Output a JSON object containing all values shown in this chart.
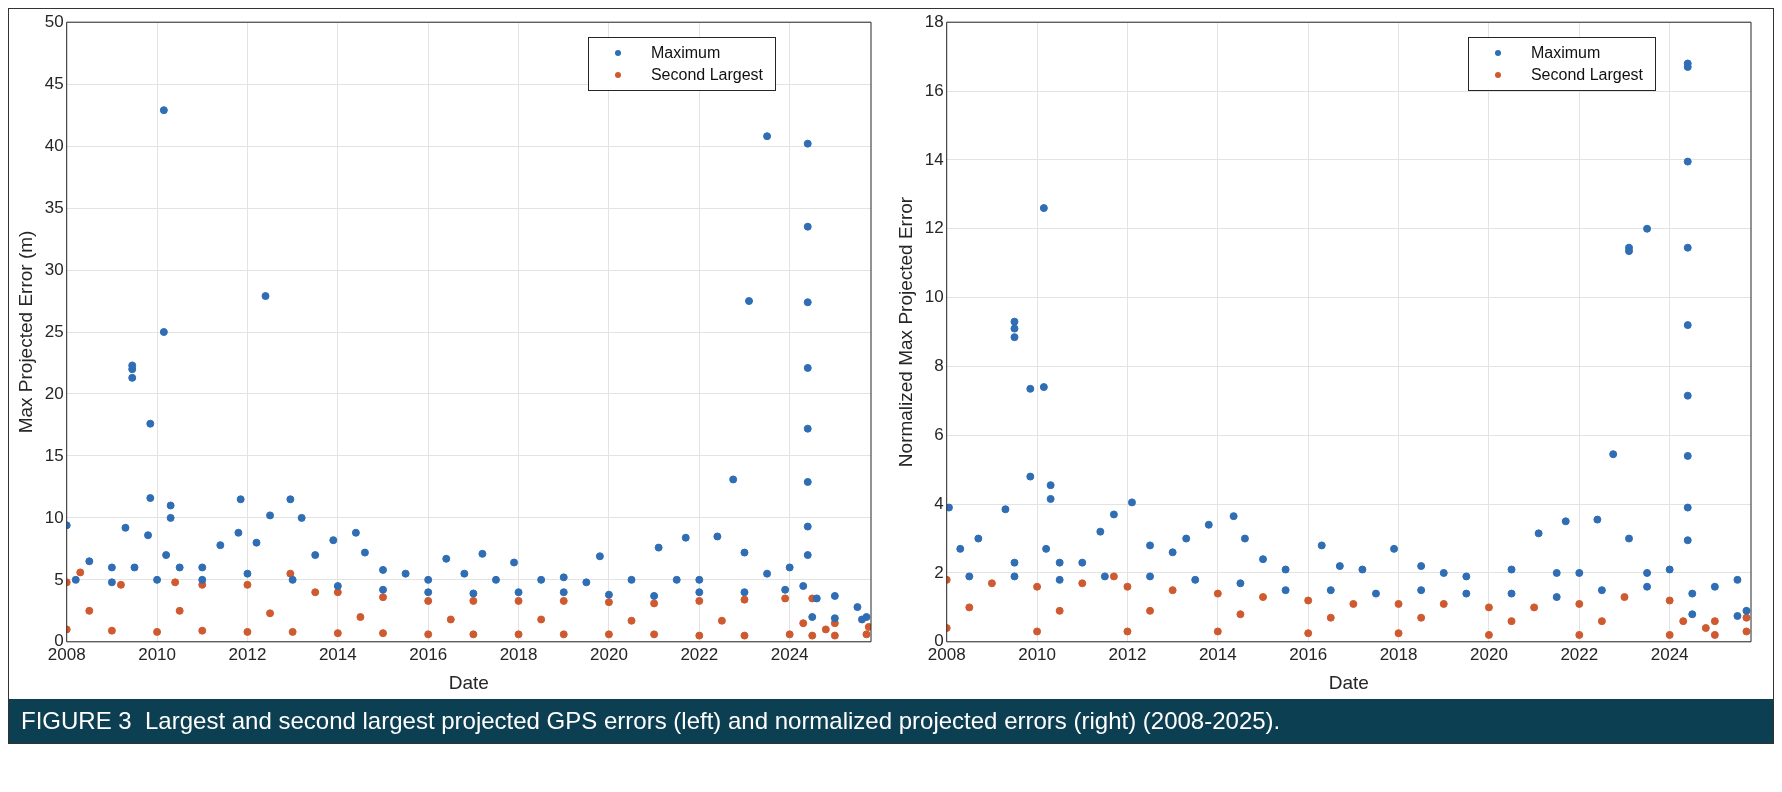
{
  "chart_data": [
    {
      "type": "scatter",
      "xlabel": "Date",
      "ylabel": "Max Projected Error (m)",
      "annotations": [
        "FIGURE 3  Largest and second largest projected GPS errors (left) and normalized projected errors (right) (2008-2025)."
      ],
      "xlim": [
        2008,
        2025.8
      ],
      "xticks": [
        2008,
        2010,
        2012,
        2014,
        2016,
        2018,
        2020,
        2022,
        2024
      ],
      "ylim": [
        0,
        50
      ],
      "yticks": [
        0,
        5,
        10,
        15,
        20,
        25,
        30,
        35,
        40,
        45,
        50
      ],
      "grid": true,
      "legend": "top right",
      "marker": "circle",
      "series": [
        {
          "name": "Maximum",
          "color": "#2f6db5",
          "x": [
            2008.0,
            2008.5,
            2009.0,
            2009.3,
            2009.5,
            2009.8,
            2010.2,
            2010.5,
            2011.0,
            2011.4,
            2011.8,
            2012.2,
            2012.5,
            2012.95,
            2013.2,
            2013.5,
            2013.9,
            2014.4,
            2014.6,
            2015.0,
            2015.5,
            2016.0,
            2016.4,
            2016.8,
            2017.2,
            2017.5,
            2017.9,
            2018.5,
            2019.0,
            2019.5,
            2019.8,
            2020.5,
            2021.1,
            2021.5,
            2021.7,
            2022.0,
            2022.4,
            2022.75,
            2023.0,
            2023.5,
            2024.0,
            2024.3,
            2024.6,
            2025.0,
            2025.5,
            2025.7,
            2008.2,
            2009.0,
            2010.0,
            2011.0,
            2012.0,
            2013.0,
            2014.0,
            2015.0,
            2016.0,
            2017.0,
            2018.0,
            2019.0,
            2020.0,
            2021.0,
            2022.0,
            2023.0,
            2023.9,
            2024.5,
            2025.0,
            2025.6,
            2009.45,
            2009.45,
            2009.45,
            2009.85,
            2009.85,
            2010.15,
            2010.15,
            2010.3,
            2010.3,
            2011.85,
            2012.4,
            2023.1,
            2023.5,
            2024.4,
            2024.4,
            2024.4,
            2024.4,
            2024.4,
            2024.4,
            2024.4,
            2024.4
          ],
          "values": [
            9.4,
            6.5,
            6.0,
            9.2,
            6.0,
            8.6,
            7.0,
            6.0,
            6.0,
            7.8,
            8.8,
            8.0,
            10.2,
            11.5,
            10.0,
            7.0,
            8.2,
            8.8,
            7.2,
            5.8,
            5.5,
            5.0,
            6.7,
            5.5,
            7.1,
            5.0,
            6.4,
            5.0,
            5.2,
            4.8,
            6.9,
            5.0,
            7.6,
            5.0,
            8.4,
            5.0,
            8.5,
            13.1,
            7.2,
            5.5,
            6.0,
            4.5,
            3.5,
            3.7,
            2.8,
            2.0,
            5.0,
            4.8,
            5.0,
            5.0,
            5.5,
            5.0,
            4.5,
            4.2,
            4.0,
            3.9,
            4.0,
            4.0,
            3.8,
            3.7,
            4.0,
            4.0,
            4.2,
            2.0,
            1.9,
            1.8,
            22.3,
            21.3,
            22.0,
            17.6,
            11.6,
            42.9,
            25.0,
            11.0,
            10.0,
            11.5,
            27.9,
            27.5,
            40.8,
            40.2,
            33.5,
            27.4,
            22.1,
            17.2,
            12.9,
            9.3,
            7.0
          ]
        },
        {
          "name": "Second Largest",
          "color": "#cf5a30",
          "x": [
            2008.0,
            2008.3,
            2009.2,
            2010.4,
            2011.0,
            2012.0,
            2012.95,
            2013.5,
            2014.0,
            2015.0,
            2016.0,
            2017.0,
            2018.0,
            2019.0,
            2020.0,
            2021.0,
            2022.0,
            2023.0,
            2023.9,
            2024.3,
            2024.5,
            2025.0,
            2025.75,
            2008.0,
            2009.0,
            2010.0,
            2011.0,
            2012.0,
            2013.0,
            2014.0,
            2015.0,
            2016.0,
            2017.0,
            2018.0,
            2019.0,
            2020.0,
            2021.0,
            2022.0,
            2023.0,
            2024.0,
            2024.5,
            2025.0,
            2025.7,
            2008.5,
            2010.5,
            2012.5,
            2014.5,
            2016.5,
            2018.5,
            2020.5,
            2022.5,
            2024.8
          ],
          "values": [
            4.8,
            5.6,
            4.6,
            4.8,
            4.6,
            4.6,
            5.5,
            4.0,
            4.0,
            3.6,
            3.3,
            3.3,
            3.3,
            3.3,
            3.2,
            3.1,
            3.3,
            3.4,
            3.5,
            1.5,
            3.5,
            1.5,
            1.2,
            1.0,
            0.9,
            0.8,
            0.9,
            0.8,
            0.8,
            0.7,
            0.7,
            0.6,
            0.6,
            0.6,
            0.6,
            0.6,
            0.6,
            0.5,
            0.5,
            0.6,
            0.5,
            0.5,
            0.6,
            2.5,
            2.5,
            2.3,
            2.0,
            1.8,
            1.8,
            1.7,
            1.7,
            1.0
          ]
        }
      ]
    },
    {
      "type": "scatter",
      "xlabel": "Date",
      "ylabel": "Normalized Max Projected Error",
      "xlim": [
        2008,
        2025.8
      ],
      "xticks": [
        2008,
        2010,
        2012,
        2014,
        2016,
        2018,
        2020,
        2022,
        2024
      ],
      "ylim": [
        0,
        18
      ],
      "yticks": [
        0,
        2,
        4,
        6,
        8,
        10,
        12,
        14,
        16,
        18
      ],
      "grid": true,
      "legend": "top right",
      "marker": "circle",
      "series": [
        {
          "name": "Maximum",
          "color": "#2f6db5",
          "x": [
            2008.05,
            2008.3,
            2008.7,
            2009.3,
            2009.5,
            2010.2,
            2010.5,
            2011.0,
            2011.4,
            2011.7,
            2012.1,
            2012.5,
            2013.0,
            2013.3,
            2013.8,
            2014.35,
            2014.6,
            2015.0,
            2015.5,
            2016.3,
            2016.7,
            2017.2,
            2017.9,
            2018.5,
            2019.0,
            2019.5,
            2020.5,
            2021.1,
            2021.5,
            2021.7,
            2022.0,
            2022.4,
            2022.75,
            2023.1,
            2023.5,
            2024.0,
            2024.5,
            2025.0,
            2025.5,
            2025.7,
            2008.5,
            2009.5,
            2010.5,
            2011.5,
            2012.5,
            2013.5,
            2014.5,
            2015.5,
            2016.5,
            2017.5,
            2018.5,
            2019.5,
            2020.5,
            2021.5,
            2022.5,
            2023.5,
            2024.5,
            2025.5,
            2009.5,
            2009.5,
            2009.5,
            2009.85,
            2009.85,
            2010.15,
            2010.15,
            2010.3,
            2010.3,
            2023.1,
            2023.1,
            2023.5,
            2024.4,
            2024.4,
            2024.4,
            2024.4,
            2024.4,
            2024.4,
            2024.4,
            2024.4,
            2024.4
          ],
          "values": [
            3.9,
            2.7,
            3.0,
            3.85,
            2.3,
            2.7,
            2.3,
            2.3,
            3.2,
            3.7,
            4.05,
            2.8,
            2.6,
            3.0,
            3.4,
            3.65,
            3.0,
            2.4,
            2.1,
            2.8,
            2.2,
            2.1,
            2.7,
            2.2,
            2.0,
            1.9,
            2.1,
            3.15,
            2.0,
            3.5,
            2.0,
            3.55,
            5.45,
            3.0,
            2.0,
            2.1,
            1.4,
            1.6,
            1.8,
            0.9,
            1.9,
            1.9,
            1.8,
            1.9,
            1.9,
            1.8,
            1.7,
            1.5,
            1.5,
            1.4,
            1.5,
            1.4,
            1.4,
            1.3,
            1.5,
            1.6,
            0.8,
            0.75,
            9.3,
            9.1,
            8.85,
            7.35,
            4.8,
            12.6,
            7.4,
            4.55,
            4.15,
            11.45,
            11.35,
            12.0,
            16.8,
            16.7,
            13.95,
            11.45,
            9.2,
            7.15,
            5.4,
            3.9,
            2.95
          ]
        },
        {
          "name": "Second Largest",
          "color": "#cf5a30",
          "x": [
            2008.0,
            2009.0,
            2010.0,
            2011.0,
            2011.7,
            2012.0,
            2013.0,
            2014.0,
            2015.0,
            2016.0,
            2017.0,
            2018.0,
            2019.0,
            2020.0,
            2021.0,
            2022.0,
            2023.0,
            2024.0,
            2024.3,
            2025.0,
            2025.7,
            2008.0,
            2010.0,
            2012.0,
            2014.0,
            2016.0,
            2018.0,
            2020.0,
            2022.0,
            2024.0,
            2025.0,
            2025.7,
            2008.5,
            2010.5,
            2012.5,
            2014.5,
            2016.5,
            2018.5,
            2020.5,
            2022.5,
            2024.8
          ],
          "values": [
            1.8,
            1.7,
            1.6,
            1.7,
            1.9,
            1.6,
            1.5,
            1.4,
            1.3,
            1.2,
            1.1,
            1.1,
            1.1,
            1.0,
            1.0,
            1.1,
            1.3,
            1.2,
            0.6,
            0.6,
            0.7,
            0.4,
            0.3,
            0.3,
            0.3,
            0.25,
            0.25,
            0.2,
            0.2,
            0.2,
            0.2,
            0.3,
            1.0,
            0.9,
            0.9,
            0.8,
            0.7,
            0.7,
            0.6,
            0.6,
            0.4
          ]
        }
      ]
    }
  ]
}
